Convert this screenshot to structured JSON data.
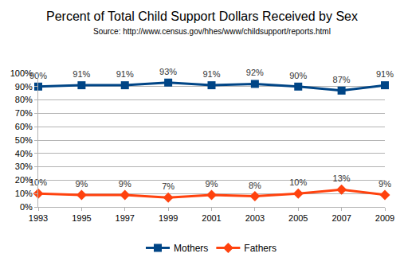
{
  "chart_data": {
    "type": "line",
    "title": "Percent of Total Child Support Dollars Received by Sex",
    "subtitle": "Source: http://www.census.gov/hhes/www/childsupport/reports.html",
    "x": [
      1993,
      1995,
      1997,
      1999,
      2001,
      2003,
      2005,
      2007,
      2009
    ],
    "xlim": [
      1993,
      2009
    ],
    "xticks": [
      1993,
      1995,
      1997,
      1999,
      2001,
      2003,
      2005,
      2007,
      2009
    ],
    "ylim": [
      0,
      100
    ],
    "yticks": [
      {
        "value": 0,
        "label": "0%"
      },
      {
        "value": 10,
        "label": "10%"
      },
      {
        "value": 20,
        "label": "20%"
      },
      {
        "value": 30,
        "label": "30%"
      },
      {
        "value": 40,
        "label": "40%"
      },
      {
        "value": 50,
        "label": "50%"
      },
      {
        "value": 60,
        "label": "60%"
      },
      {
        "value": 70,
        "label": "70%"
      },
      {
        "value": 80,
        "label": "80%"
      },
      {
        "value": 90,
        "label": "90%"
      },
      {
        "value": 100,
        "label": "100%"
      }
    ],
    "grid": true,
    "legend": "bottom",
    "data_labels": true,
    "series": [
      {
        "name": "Mothers",
        "color": "#004586",
        "marker": "square",
        "values": [
          90,
          91,
          91,
          93,
          91,
          92,
          90,
          87,
          91
        ],
        "value_labels": [
          "90%",
          "91%",
          "91%",
          "93%",
          "91%",
          "92%",
          "90%",
          "87%",
          "91%"
        ]
      },
      {
        "name": "Fathers",
        "color": "#ff420e",
        "marker": "diamond",
        "values": [
          10,
          9,
          9,
          7,
          9,
          8,
          10,
          13,
          9
        ],
        "value_labels": [
          "10%",
          "9%",
          "9%",
          "7%",
          "9%",
          "8%",
          "10%",
          "13%",
          "9%"
        ]
      }
    ]
  }
}
